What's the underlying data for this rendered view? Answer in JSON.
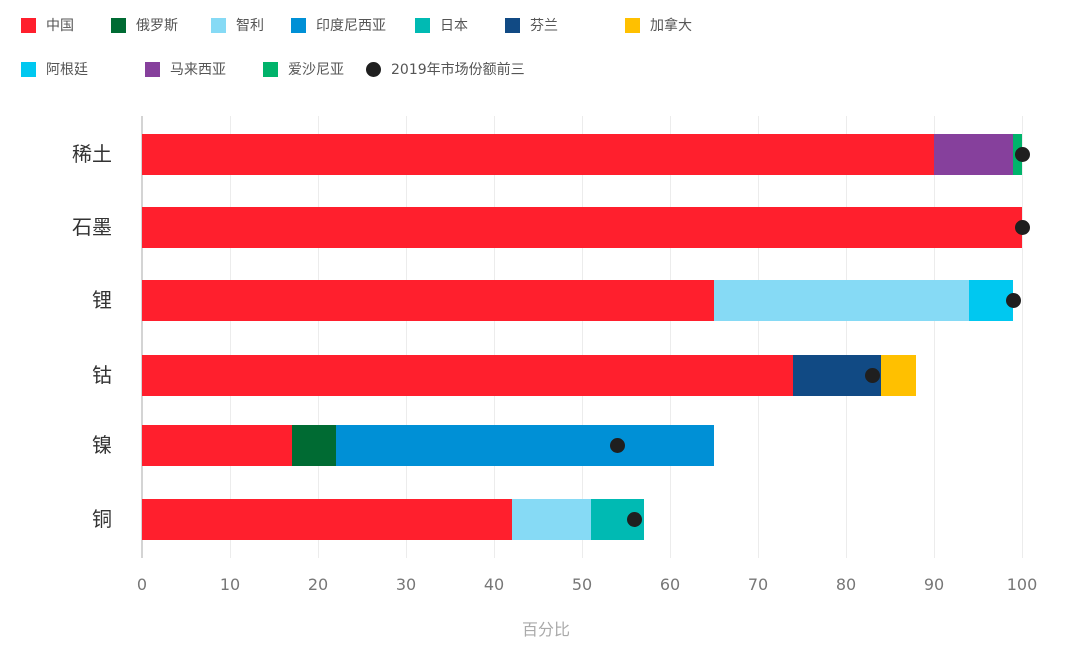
{
  "chart_data": {
    "type": "bar",
    "orientation": "horizontal",
    "stacked": true,
    "title": "",
    "xlabel": "百分比",
    "ylabel": "",
    "xlim": [
      0,
      100
    ],
    "xticks": [
      0,
      10,
      20,
      30,
      40,
      50,
      60,
      70,
      80,
      90,
      100
    ],
    "grid": true,
    "legend_position": "top",
    "categories": [
      "稀土",
      "石墨",
      "锂",
      "钴",
      "镍",
      "铜"
    ],
    "series": [
      {
        "name": "中国",
        "color": "#FF1F2D",
        "values": [
          90,
          100,
          65,
          74,
          17,
          42
        ]
      },
      {
        "name": "俄罗斯",
        "color": "#006B33",
        "values": [
          0,
          0,
          0,
          0,
          5,
          0
        ]
      },
      {
        "name": "智利",
        "color": "#86DAF5",
        "values": [
          0,
          0,
          29,
          0,
          0,
          9
        ]
      },
      {
        "name": "印度尼西亚",
        "color": "#0090D6",
        "values": [
          0,
          0,
          0,
          0,
          43,
          0
        ]
      },
      {
        "name": "日本",
        "color": "#00BAB3",
        "values": [
          0,
          0,
          0,
          0,
          0,
          6
        ]
      },
      {
        "name": "芬兰",
        "color": "#114A84",
        "values": [
          0,
          0,
          0,
          10,
          0,
          0
        ]
      },
      {
        "name": "加拿大",
        "color": "#FFC000",
        "values": [
          0,
          0,
          0,
          4,
          0,
          0
        ]
      },
      {
        "name": "阿根廷",
        "color": "#00C8F0",
        "values": [
          0,
          0,
          5,
          0,
          0,
          0
        ]
      },
      {
        "name": "马来西亚",
        "color": "#86409C",
        "values": [
          9,
          0,
          0,
          0,
          0,
          0
        ]
      },
      {
        "name": "爱沙尼亚",
        "color": "#00B36B",
        "values": [
          1,
          0,
          0,
          0,
          0,
          0
        ]
      }
    ],
    "markers": {
      "name": "2019年市场份额前三",
      "color": "#1F1F1F",
      "shape": "circle",
      "values": [
        100,
        100,
        99,
        83,
        54,
        56
      ]
    }
  },
  "legend": {
    "items": [
      {
        "label": "中国",
        "color": "#FF1F2D",
        "type": "square"
      },
      {
        "label": "俄罗斯",
        "color": "#006B33",
        "type": "square"
      },
      {
        "label": "智利",
        "color": "#86DAF5",
        "type": "square"
      },
      {
        "label": "印度尼西亚",
        "color": "#0090D6",
        "type": "square"
      },
      {
        "label": "日本",
        "color": "#00BAB3",
        "type": "square"
      },
      {
        "label": "芬兰",
        "color": "#114A84",
        "type": "square"
      },
      {
        "label": "加拿大",
        "color": "#FFC000",
        "type": "square"
      },
      {
        "label": "阿根廷",
        "color": "#00C8F0",
        "type": "square"
      },
      {
        "label": "马来西亚",
        "color": "#86409C",
        "type": "square"
      },
      {
        "label": "爱沙尼亚",
        "color": "#00B36B",
        "type": "square"
      },
      {
        "label": "2019年市场份额前三",
        "color": "#1F1F1F",
        "type": "circle"
      }
    ]
  },
  "axis": {
    "title": "百分比",
    "ticks": [
      "0",
      "10",
      "20",
      "30",
      "40",
      "50",
      "60",
      "70",
      "80",
      "90",
      "100"
    ]
  }
}
